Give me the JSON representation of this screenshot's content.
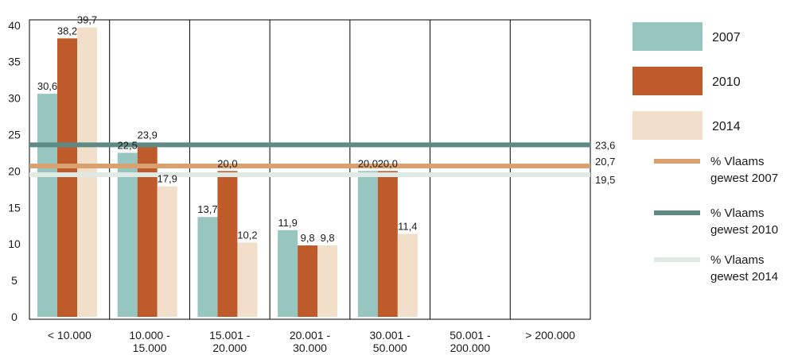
{
  "chart_data": {
    "type": "bar",
    "categories": [
      [
        "< 10.000"
      ],
      [
        "10.000 -",
        "15.000"
      ],
      [
        "15.001 -",
        "20.000"
      ],
      [
        "20.001 -",
        "30.000"
      ],
      [
        "30.001 -",
        "50.000"
      ],
      [
        "50.001 -",
        "200.000"
      ],
      [
        "> 200.000"
      ]
    ],
    "series": [
      {
        "name": "2007",
        "color": "#96c6bf",
        "values": [
          30.6,
          22.5,
          13.7,
          11.9,
          20.0,
          0,
          0
        ],
        "labels": [
          "30,6",
          "22,5",
          "13,7",
          "11,9",
          "20,0",
          "",
          ""
        ]
      },
      {
        "name": "2010",
        "color": "#bf5a2a",
        "values": [
          38.2,
          23.9,
          20.0,
          9.8,
          20.0,
          0,
          0
        ],
        "labels": [
          "38,2",
          "23,9",
          "20,0",
          "9,8",
          "20,0",
          "",
          ""
        ]
      },
      {
        "name": "2014",
        "color": "#f2dfc9",
        "values": [
          39.7,
          17.9,
          10.2,
          9.8,
          11.4,
          0,
          0
        ],
        "labels": [
          "39,7",
          "17,9",
          "10,2",
          "9,8",
          "11,4",
          "",
          ""
        ]
      }
    ],
    "reference_lines": [
      {
        "name": "% Vlaams gewest 2007",
        "legend_lines": [
          "% Vlaams",
          "gewest 2007"
        ],
        "value": 20.7,
        "label": "20,7",
        "color": "#d9a070"
      },
      {
        "name": "% Vlaams gewest 2010",
        "legend_lines": [
          "% Vlaams",
          "gewest 2010"
        ],
        "value": 23.6,
        "label": "23,6",
        "color": "#5e8a86"
      },
      {
        "name": "% Vlaams gewest 2014",
        "legend_lines": [
          "% Vlaams",
          "gewest 2014"
        ],
        "value": 19.5,
        "label": "19,5",
        "color": "#dfeae4"
      }
    ],
    "yticks": [
      0,
      5,
      10,
      15,
      20,
      25,
      30,
      35,
      40
    ],
    "ylim": [
      0,
      42
    ],
    "grid": true,
    "legend": "right",
    "title": "",
    "xlabel": "",
    "ylabel": ""
  }
}
